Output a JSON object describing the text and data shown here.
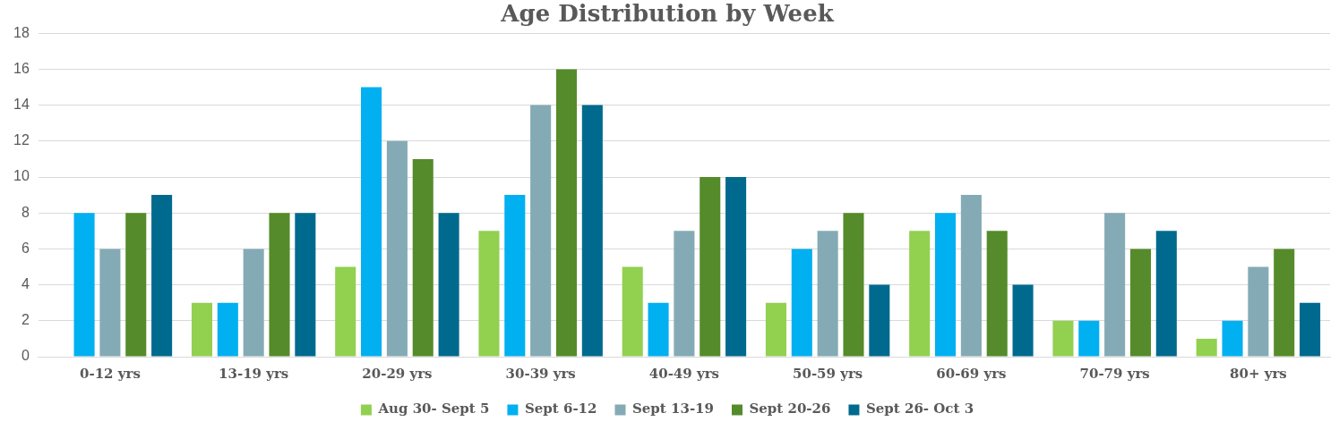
{
  "chart_data": {
    "type": "bar",
    "title": "Age Distribution by Week",
    "categories": [
      "0-12 yrs",
      "13-19 yrs",
      "20-29 yrs",
      "30-39 yrs",
      "40-49 yrs",
      "50-59 yrs",
      "60-69 yrs",
      "70-79 yrs",
      "80+ yrs"
    ],
    "series": [
      {
        "name": "Aug 30- Sept 5",
        "color": "#92d050",
        "values": [
          0,
          3,
          5,
          7,
          5,
          3,
          7,
          2,
          1
        ]
      },
      {
        "name": "Sept 6-12",
        "color": "#00b0f0",
        "values": [
          8,
          3,
          15,
          9,
          3,
          6,
          8,
          2,
          2
        ]
      },
      {
        "name": "Sept 13-19",
        "color": "#84abb5",
        "values": [
          6,
          6,
          12,
          14,
          7,
          7,
          9,
          8,
          5
        ]
      },
      {
        "name": "Sept 20-26",
        "color": "#558b2a",
        "values": [
          8,
          8,
          11,
          16,
          10,
          8,
          7,
          6,
          6
        ]
      },
      {
        "name": "Sept 26- Oct 3",
        "color": "#006a8e",
        "values": [
          9,
          8,
          8,
          14,
          10,
          4,
          4,
          7,
          3
        ]
      }
    ],
    "ylim": [
      0,
      18
    ],
    "yticks": [
      0,
      2,
      4,
      6,
      8,
      10,
      12,
      14,
      16,
      18
    ],
    "grid": "y",
    "legend": "bottom"
  }
}
